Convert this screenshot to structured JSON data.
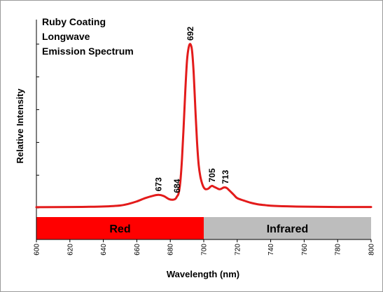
{
  "chart_data": {
    "type": "line",
    "title": [
      "Ruby Coating",
      "Longwave",
      "Emission Spectrum"
    ],
    "xlabel": "Wavelength (nm)",
    "ylabel": "Relative Intensity",
    "xlim": [
      600,
      800
    ],
    "ylim": [
      0,
      100
    ],
    "x_ticks": [
      600,
      620,
      640,
      660,
      680,
      700,
      720,
      740,
      760,
      780,
      800
    ],
    "x_tick_labels": [
      "600",
      "620",
      "640",
      "660",
      "680",
      "700",
      "720",
      "740",
      "760",
      "780",
      "800"
    ],
    "y_ticks": [
      0,
      20,
      40,
      60,
      80,
      100
    ],
    "y_tick_labels_shown": false,
    "grid": false,
    "series": [
      {
        "color": "#e31b1b",
        "x": [
          600,
          620,
          630,
          640,
          650,
          655,
          660,
          665,
          670,
          673,
          676,
          679,
          681,
          683,
          684,
          685,
          686,
          687,
          688,
          689,
          690,
          691,
          692,
          693,
          694,
          695,
          696,
          697,
          698,
          699,
          700,
          701,
          702,
          703,
          704,
          705,
          706,
          707,
          708,
          709,
          710,
          711,
          712,
          713,
          714,
          715,
          716,
          718,
          720,
          724,
          728,
          732,
          736,
          740,
          750,
          760,
          770,
          780,
          790,
          800
        ],
        "y": [
          0.5,
          0.6,
          0.7,
          0.9,
          1.5,
          2.5,
          4.0,
          6.0,
          7.5,
          8.0,
          7.3,
          5.5,
          5.0,
          5.5,
          7.0,
          9.0,
          16,
          30,
          50,
          72,
          90,
          98,
          100,
          96,
          82,
          60,
          40,
          26,
          19,
          15,
          12.5,
          11.5,
          11.5,
          12,
          13,
          13.5,
          13,
          12.5,
          12,
          11.5,
          11.5,
          12,
          12.5,
          12.5,
          12,
          11,
          10,
          8,
          6,
          4.5,
          3.2,
          2.3,
          1.8,
          1.4,
          1.0,
          0.8,
          0.7,
          0.6,
          0.6,
          0.6
        ]
      }
    ],
    "annotations": [
      {
        "text": "673",
        "x": 673,
        "y": 8.0
      },
      {
        "text": "684",
        "x": 684,
        "y": 7.0
      },
      {
        "text": "692",
        "x": 692,
        "y": 100
      },
      {
        "text": "705",
        "x": 705,
        "y": 13.5
      },
      {
        "text": "713",
        "x": 713,
        "y": 12.5
      }
    ],
    "bands": [
      {
        "label": "Red",
        "from": 600,
        "to": 700,
        "color": "#ff0000"
      },
      {
        "label": "Infrared",
        "from": 700,
        "to": 800,
        "color": "#bdbdbd"
      }
    ]
  }
}
